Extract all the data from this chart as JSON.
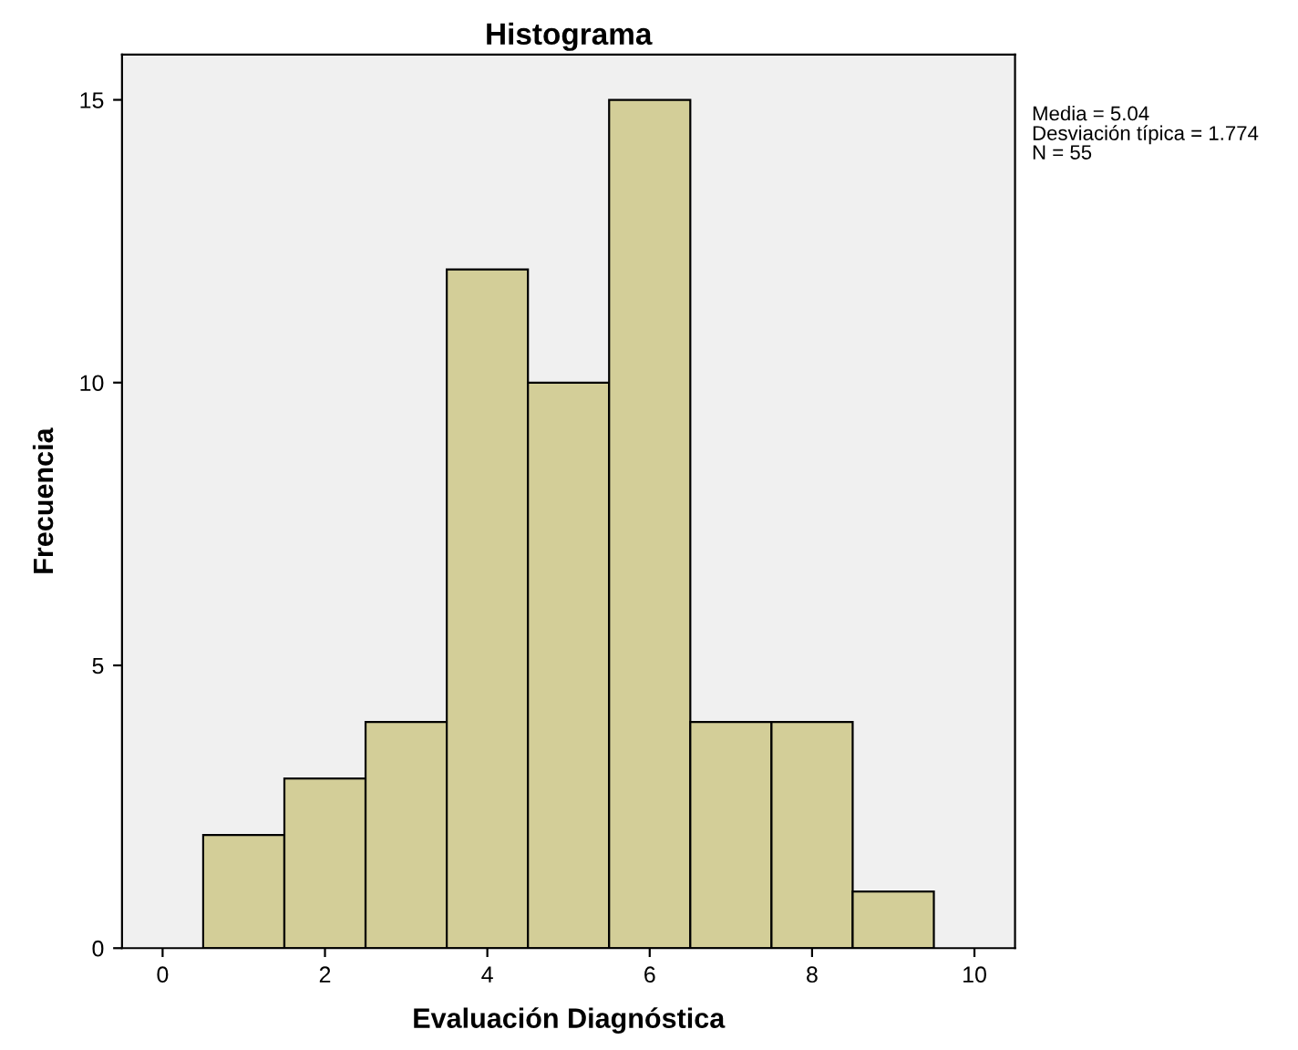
{
  "chart_data": {
    "type": "histogram",
    "title": "Histograma",
    "xlabel": "Evaluación Diagnóstica",
    "ylabel": "Frecuencia",
    "bins": [
      0.5,
      1.5,
      2.5,
      3.5,
      4.5,
      5.5,
      6.5,
      7.5,
      8.5,
      9.5
    ],
    "values": [
      2,
      3,
      4,
      12,
      10,
      15,
      4,
      4,
      1
    ],
    "color": "#d3ce98",
    "xlim": [
      -0.5,
      10.5
    ],
    "xticks": [
      0,
      2,
      4,
      6,
      8,
      10
    ],
    "ylim": [
      0,
      15.8
    ],
    "yticks": [
      0,
      5,
      10,
      15
    ],
    "grid": false,
    "legend": false,
    "annotations": [
      "Media = 5.04",
      "Desviación típica = 1.774",
      "N = 55"
    ]
  }
}
